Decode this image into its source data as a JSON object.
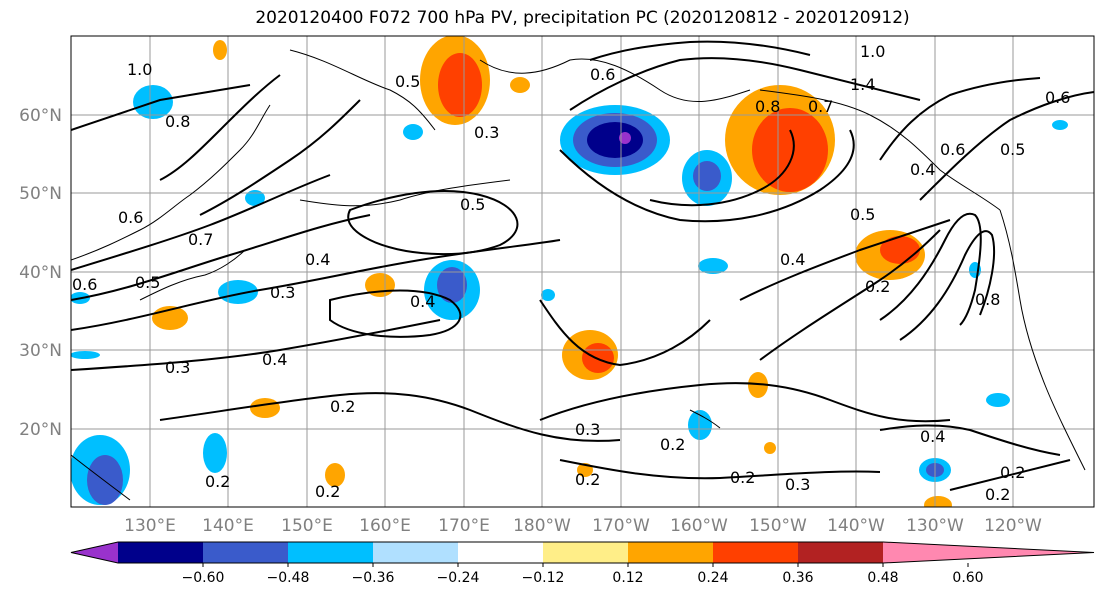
{
  "title": "2020120400 F072 700 hPa PV, precipitation PC (2020120812 - 2020120912)",
  "map": {
    "lat_labels": [
      "60°N",
      "50°N",
      "40°N",
      "30°N",
      "20°N"
    ],
    "lon_labels": [
      "130°E",
      "140°E",
      "150°E",
      "160°E",
      "170°E",
      "180°W",
      "170°W",
      "160°W",
      "150°W",
      "140°W",
      "130°W",
      "120°W"
    ],
    "contour_labels": [
      "1.0",
      "0.8",
      "0.6",
      "0.7",
      "0.6",
      "0.5",
      "0.3",
      "0.4",
      "0.3",
      "0.2",
      "0.2",
      "0.2",
      "0.4",
      "0.5",
      "0.3",
      "0.5",
      "0.6",
      "0.4",
      "0.5",
      "0.4",
      "0.3",
      "0.2",
      "0.2",
      "0.3",
      "0.2",
      "0.2",
      "0.4",
      "0.2",
      "0.2",
      "0.8",
      "0.7",
      "1.0",
      "1.4",
      "0.6",
      "0.5",
      "0.6",
      "0.8",
      "0.4"
    ]
  },
  "colorbar": {
    "colors": [
      "#9932cc",
      "#00008b",
      "#3a5bcb",
      "#00bfff",
      "#b0e0ff",
      "#ffffff",
      "#ffee88",
      "#ffa500",
      "#ff4000",
      "#b22222",
      "#ff88b0"
    ],
    "tick_labels": [
      "−0.60",
      "−0.48",
      "−0.36",
      "−0.24",
      "−0.12",
      "0.12",
      "0.24",
      "0.36",
      "0.48",
      "0.60"
    ]
  }
}
